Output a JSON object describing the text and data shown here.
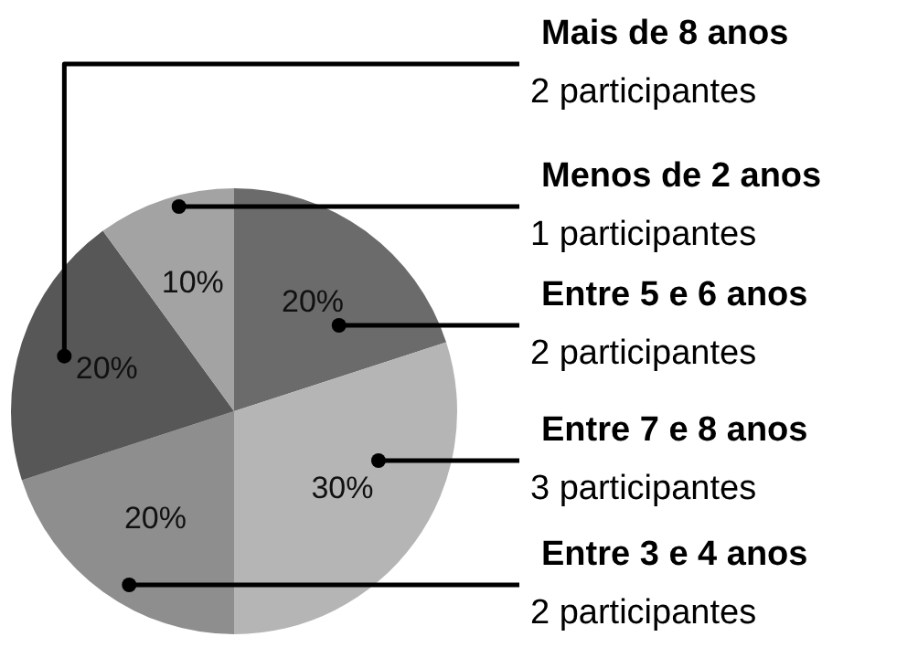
{
  "chart_data": {
    "type": "pie",
    "categories": [
      "Entre 5 e 6 anos\n2 participantes",
      "Entre 7 e 8 anos\n3 participantes",
      "Entre 3 e 4 anos\n2 participantes",
      "Mais de 8 anos\n2 participantes",
      "Menos de 2 anos\n1 participantes"
    ],
    "values": [
      20,
      30,
      20,
      20,
      10
    ],
    "value_labels": [
      "20%",
      "30%",
      "20%",
      "20%",
      "10%"
    ],
    "colors": [
      "#6b6b6b",
      "#b5b5b5",
      "#8e8e8e",
      "#575757",
      "#a3a3a3"
    ],
    "legend": false
  }
}
